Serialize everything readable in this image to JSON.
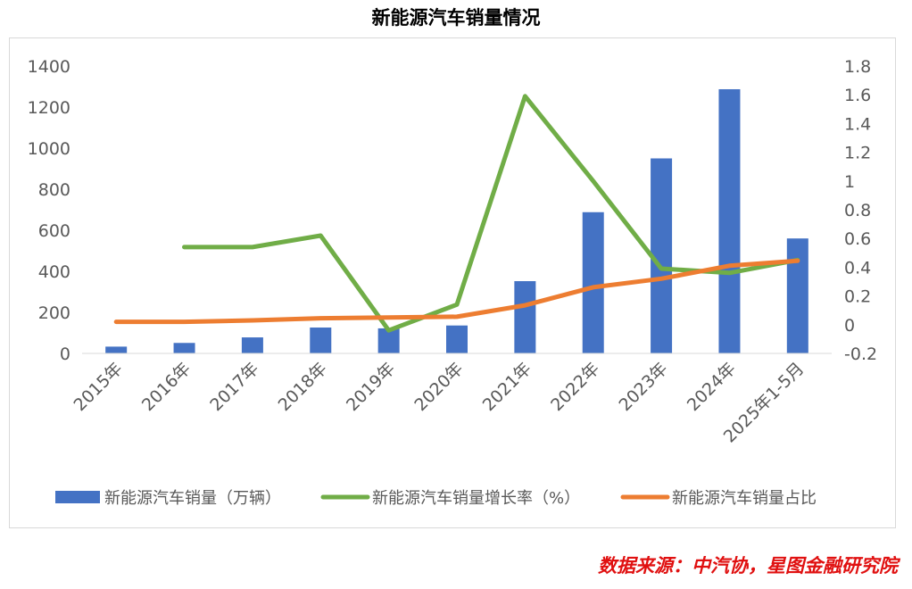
{
  "chart_data": {
    "type": "bar",
    "title": "新能源汽车销量情况",
    "categories": [
      "2015年",
      "2016年",
      "2017年",
      "2018年",
      "2019年",
      "2020年",
      "2021年",
      "2022年",
      "2023年",
      "2024年",
      "2025年1-5月"
    ],
    "series": [
      {
        "name": "新能源汽车销量（万辆）",
        "type": "bar",
        "axis": "left",
        "color": "#4472c4",
        "values": [
          33,
          51,
          78,
          126,
          122,
          136,
          352,
          688,
          950,
          1287,
          560
        ]
      },
      {
        "name": "新能源汽车销量增长率（%）",
        "type": "line",
        "axis": "right",
        "color": "#70ad47",
        "values": [
          null,
          0.54,
          0.54,
          0.62,
          -0.04,
          0.14,
          1.59,
          1.0,
          0.39,
          0.36,
          0.45
        ]
      },
      {
        "name": "新能源汽车销量占比",
        "type": "line",
        "axis": "right",
        "color": "#ed7d31",
        "values": [
          0.02,
          0.02,
          0.03,
          0.045,
          0.05,
          0.055,
          0.135,
          0.26,
          0.32,
          0.41,
          0.445
        ]
      }
    ],
    "left_axis": {
      "ylim": [
        0,
        1400
      ],
      "ticks": [
        "1400",
        "1200",
        "1000",
        "800",
        "600",
        "400",
        "200",
        "0"
      ],
      "tick_values": [
        1400,
        1200,
        1000,
        800,
        600,
        400,
        200,
        0
      ]
    },
    "right_axis": {
      "ylim": [
        -0.2,
        1.8
      ],
      "ticks": [
        "1.8",
        "1.6",
        "1.4",
        "1.2",
        "1",
        "0.8",
        "0.6",
        "0.4",
        "0.2",
        "0",
        "-0.2"
      ],
      "tick_values": [
        1.8,
        1.6,
        1.4,
        1.2,
        1.0,
        0.8,
        0.6,
        0.4,
        0.2,
        0.0,
        -0.2
      ]
    },
    "grid": false,
    "legend_position": "bottom"
  },
  "source_note": "数据来源：中汽协，星图金融研究院"
}
